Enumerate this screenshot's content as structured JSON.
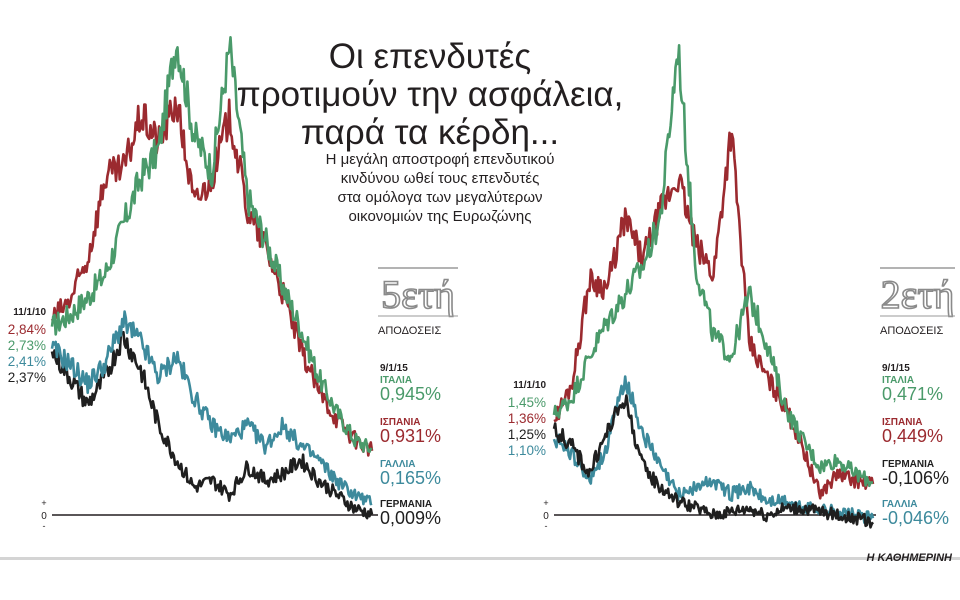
{
  "header": {
    "title_lines": [
      "Οι επενδυτές",
      "προτιμούν την ασφάλεια,",
      "παρά τα κέρδη..."
    ],
    "subtitle_lines": [
      "Η μεγάλη αποστροφή επενδυτικού",
      "κινδύνου ωθεί τους επενδυτές",
      "στα ομόλογα των μεγαλύτερων",
      "οικονομιών της Ευρωζώνης"
    ]
  },
  "credit": "Η ΚΑΘΗΜΕΡΙΝΗ",
  "colors": {
    "ITALIA": "#4a9a6a",
    "SPAIN": "#9b2a2f",
    "FRANCE": "#3d8a9c",
    "GERMANY": "#1f1f1f"
  },
  "chart_data": [
    {
      "type": "line",
      "panel_title": "5ετή",
      "panel_subtitle": "ΑΠΟΔΟΣΕΙΣ",
      "start_date": "11/1/10",
      "end_date": "9/1/15",
      "zero_axis": {
        "plus": "+",
        "zero": "0",
        "minus": "-"
      },
      "ylim": [
        -0.2,
        7.4
      ],
      "series": [
        {
          "name": "ΙΤΑΛΙΑ",
          "color": "#4a9a6a",
          "start_label": "2,73%",
          "end_label": "0,945%",
          "values": [
            2.73,
            2.9,
            3.15,
            3.5,
            4.2,
            4.9,
            5.3,
            6.9,
            5.5,
            5.0,
            6.8,
            4.6,
            4.0,
            3.3,
            2.7,
            2.0,
            1.5,
            1.1,
            0.945
          ]
        },
        {
          "name": "ΙΣΠΑΝΙΑ",
          "color": "#9b2a2f",
          "start_label": "2,84%",
          "end_label": "0,931%",
          "values": [
            2.84,
            3.1,
            3.7,
            4.9,
            5.0,
            5.8,
            5.4,
            6.0,
            4.5,
            4.9,
            5.8,
            4.4,
            3.9,
            3.2,
            2.4,
            1.8,
            1.4,
            1.1,
            0.931
          ]
        },
        {
          "name": "ΓΑΛΛΙΑ",
          "color": "#3d8a9c",
          "start_label": "2,41%",
          "end_label": "0,165%",
          "values": [
            2.41,
            2.2,
            1.9,
            2.2,
            2.8,
            2.5,
            2.0,
            2.3,
            1.7,
            1.3,
            1.1,
            1.3,
            1.0,
            1.3,
            1.0,
            0.8,
            0.5,
            0.3,
            0.165
          ]
        },
        {
          "name": "ΓΕΡΜΑΝΙΑ",
          "color": "#1f1f1f",
          "start_label": "2,37%",
          "end_label": "0,009%",
          "values": [
            2.37,
            2.0,
            1.6,
            2.0,
            2.6,
            2.1,
            1.3,
            0.8,
            0.4,
            0.5,
            0.3,
            0.7,
            0.5,
            0.6,
            0.8,
            0.5,
            0.3,
            0.1,
            0.009
          ]
        }
      ]
    },
    {
      "type": "line",
      "panel_title": "2ετή",
      "panel_subtitle": "ΑΠΟΔΟΣΕΙΣ",
      "start_date": "11/1/10",
      "end_date": "9/1/15",
      "zero_axis": {
        "plus": "+",
        "zero": "0",
        "minus": "-"
      },
      "ylim": [
        -0.2,
        7.4
      ],
      "series": [
        {
          "name": "ΙΤΑΛΙΑ",
          "color": "#4a9a6a",
          "start_label": "1,45%",
          "end_label": "0,471%",
          "values": [
            1.45,
            1.7,
            2.3,
            2.8,
            3.2,
            3.6,
            4.3,
            6.8,
            3.6,
            2.6,
            2.3,
            3.2,
            2.5,
            1.6,
            1.1,
            0.7,
            0.8,
            0.6,
            0.471
          ]
        },
        {
          "name": "ΙΣΠΑΝΙΑ",
          "color": "#9b2a2f",
          "start_label": "1,36%",
          "end_label": "0,449%",
          "values": [
            1.36,
            1.9,
            3.4,
            3.3,
            4.3,
            3.7,
            4.4,
            4.9,
            3.9,
            3.5,
            5.6,
            2.5,
            2.0,
            1.6,
            1.0,
            0.3,
            0.6,
            0.5,
            0.449
          ]
        },
        {
          "name": "ΓΕΡΜΑΝΙΑ",
          "color": "#1f1f1f",
          "start_label": "1,25%",
          "end_label": "-0,106%",
          "values": [
            1.25,
            1.0,
            0.6,
            1.2,
            1.7,
            0.7,
            0.4,
            0.2,
            0.1,
            0.0,
            0.05,
            0.1,
            0.0,
            0.1,
            0.1,
            0.05,
            0.0,
            -0.05,
            -0.106
          ]
        },
        {
          "name": "ΓΑΛΛΙΑ",
          "color": "#3d8a9c",
          "start_label": "1,10%",
          "end_label": "-0,046%",
          "values": [
            1.1,
            0.9,
            0.5,
            1.0,
            2.0,
            1.2,
            0.7,
            0.3,
            0.4,
            0.5,
            0.3,
            0.4,
            0.2,
            0.2,
            0.1,
            0.1,
            0.05,
            0.0,
            -0.046
          ]
        }
      ]
    }
  ]
}
